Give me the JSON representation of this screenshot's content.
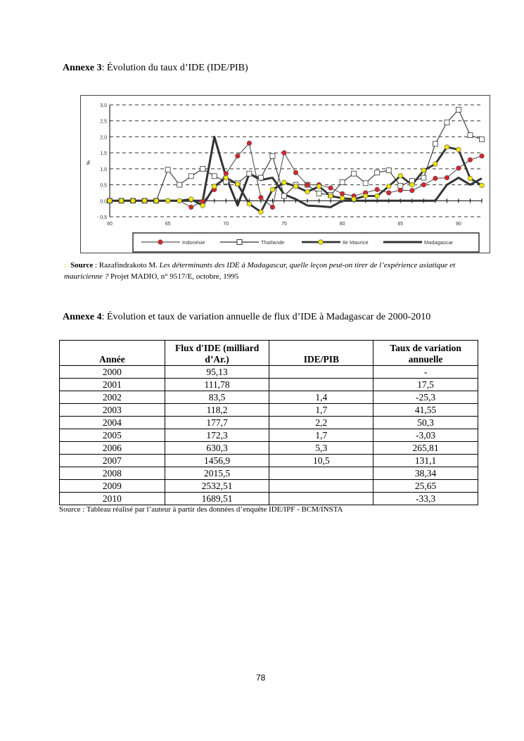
{
  "annexe3": {
    "label": "Annexe 3",
    "title": ": Évolution du taux d’IDE (IDE/PIB)"
  },
  "chart_data": {
    "type": "line",
    "title": "",
    "xlabel": "",
    "ylabel": "%",
    "x": [
      60,
      61,
      62,
      63,
      64,
      65,
      66,
      67,
      68,
      69,
      70,
      71,
      72,
      73,
      74,
      75,
      76,
      77,
      78,
      79,
      80,
      81,
      82,
      83,
      84,
      85,
      86,
      87,
      88,
      89,
      90,
      91,
      92
    ],
    "xticks": [
      "60",
      "65",
      "70",
      "75",
      "80",
      "85",
      "90"
    ],
    "xtick_values": [
      60,
      65,
      70,
      75,
      80,
      85,
      90
    ],
    "yticks": [
      "3,0",
      "2,5",
      "2,0",
      "1,5",
      "1,0",
      "0,5",
      "0,0",
      "- 0,5"
    ],
    "ytick_values": [
      3.0,
      2.5,
      2.0,
      1.5,
      1.0,
      0.5,
      0.0,
      -0.5
    ],
    "xlim": [
      60,
      92
    ],
    "ylim": [
      -0.5,
      3.0
    ],
    "grid": true,
    "legend_position": "bottom",
    "series": [
      {
        "name": "Indonésie",
        "marker": "circle-red",
        "color": "#d8232a",
        "values": [
          0,
          0,
          0,
          0,
          0,
          0,
          0,
          -0.2,
          -0.02,
          0.35,
          0.85,
          1.4,
          1.8,
          0.1,
          -0.2,
          1.5,
          0.88,
          0.5,
          0.5,
          0.4,
          0.22,
          0.15,
          0.25,
          0.35,
          0.25,
          0.33,
          0.32,
          0.5,
          0.7,
          0.72,
          1.02,
          1.28,
          1.4
        ]
      },
      {
        "name": "Thaïlande",
        "marker": "square-white",
        "color": "#333333",
        "values": [
          0,
          0,
          0,
          0,
          0,
          0.97,
          0.5,
          0.77,
          1.0,
          0.77,
          0.6,
          0.55,
          0.85,
          0.72,
          1.4,
          0.15,
          0.5,
          0.5,
          0.23,
          0.18,
          0.58,
          0.85,
          0.55,
          0.88,
          0.95,
          0.47,
          0.62,
          0.72,
          1.78,
          2.45,
          2.85,
          2.05,
          1.92
        ]
      },
      {
        "name": "Ile Maurice",
        "marker": "circle-yellow",
        "color": "#f2e600",
        "values": [
          0,
          0,
          0,
          0,
          0,
          0,
          0,
          0.05,
          -0.15,
          0.45,
          0.72,
          0.52,
          -0.1,
          -0.35,
          0.35,
          0.57,
          0.45,
          0.28,
          0.45,
          0.15,
          0.08,
          0.05,
          0.15,
          0.15,
          0.45,
          0.78,
          0.5,
          0.95,
          1.15,
          1.68,
          1.6,
          0.7,
          0.48
        ]
      },
      {
        "name": "Madagascar",
        "marker": "none",
        "color": "#333333",
        "values": [
          0,
          0,
          0,
          0,
          0,
          0,
          0,
          0,
          0,
          2.0,
          0.75,
          -0.15,
          0.85,
          0.65,
          0.72,
          0.2,
          0.05,
          -0.15,
          -0.17,
          -0.2,
          0,
          0,
          0,
          0,
          0,
          0,
          0,
          0,
          0,
          0.5,
          0.72,
          0.5,
          0.7
        ]
      }
    ]
  },
  "source1": {
    "marker": ":",
    "label": "Source",
    "author": " : Razafindrakoto M. ",
    "title_italic": "Les déterminants des IDE à Madagascar, quelle leçon peut-on tirer de l’expérience asiatique et mauricienne ?",
    "rest": " Projet MADIO, n° 9517/E, octobre, 1995"
  },
  "annexe4": {
    "label": "Annexe 4",
    "title": ": Évolution et taux de variation annuelle de flux d’IDE à Madagascar de 2000-2010"
  },
  "table": {
    "headers": [
      "Année",
      "Flux d'IDE (milliard d’Ar.)",
      "IDE/PIB",
      "Taux de variation annuelle"
    ],
    "rows": [
      [
        "2000",
        "95,13",
        "",
        "-"
      ],
      [
        "2001",
        "111,78",
        "",
        "17,5"
      ],
      [
        "2002",
        "83,5",
        "1,4",
        "-25,3"
      ],
      [
        "2003",
        "118,2",
        "1,7",
        "41,55"
      ],
      [
        "2004",
        "177,7",
        "2,2",
        "50,3"
      ],
      [
        "2005",
        "172,3",
        "1,7",
        "-3,03"
      ],
      [
        "2006",
        "630,3",
        "5,3",
        "265,81"
      ],
      [
        "2007",
        "1456,9",
        "10,5",
        "131,1"
      ],
      [
        "2008",
        "2015,5",
        "",
        "38,34"
      ],
      [
        "2009",
        "2532,51",
        "",
        "25,65"
      ],
      [
        "2010",
        "1689,51",
        "",
        "-33,3"
      ]
    ],
    "source": "Source : Tableau réalisé par l’auteur à partir des données d’enquête IDE/IPF - BCM/INSTA"
  },
  "page_number": "78"
}
